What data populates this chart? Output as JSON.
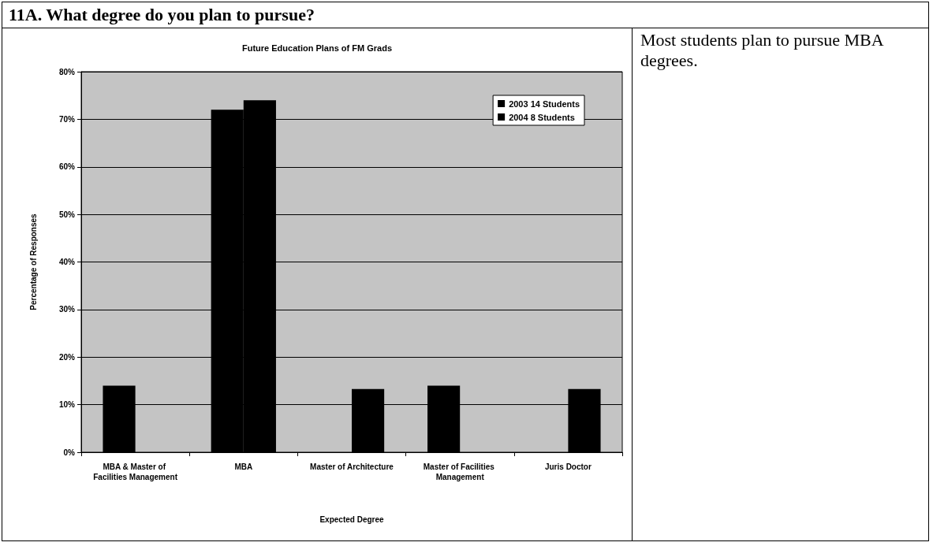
{
  "chart_data": {
    "type": "bar",
    "title": "Future Education Plans of FM Grads",
    "annotations": [
      "11A. What degree do you plan to pursue?",
      "Most students plan to pursue MBA degrees."
    ],
    "xlabel": "Expected Degree",
    "ylabel": "Percentage of Responses",
    "categories": [
      "MBA & Master of Facilities Management",
      "MBA",
      "Master of Architecture",
      "Master of Facilities Management",
      "Juris Doctor"
    ],
    "series": [
      {
        "name": "2003 14 Students",
        "color": "#000000",
        "values": [
          14,
          72,
          null,
          14,
          null
        ]
      },
      {
        "name": "2004 8 Students",
        "color": "#000000",
        "values": [
          null,
          74,
          13.3,
          null,
          13.3
        ]
      }
    ],
    "ylim": [
      0,
      80
    ],
    "yticks": [
      {
        "value": 0,
        "label": "0%"
      },
      {
        "value": 10,
        "label": "10%"
      },
      {
        "value": 20,
        "label": "20%"
      },
      {
        "value": 30,
        "label": "30%"
      },
      {
        "value": 40,
        "label": "40%"
      },
      {
        "value": 50,
        "label": "50%"
      },
      {
        "value": 60,
        "label": "60%"
      },
      {
        "value": 70,
        "label": "70%"
      },
      {
        "value": 80,
        "label": "80%"
      }
    ],
    "grid": "y",
    "legend": "top right"
  }
}
